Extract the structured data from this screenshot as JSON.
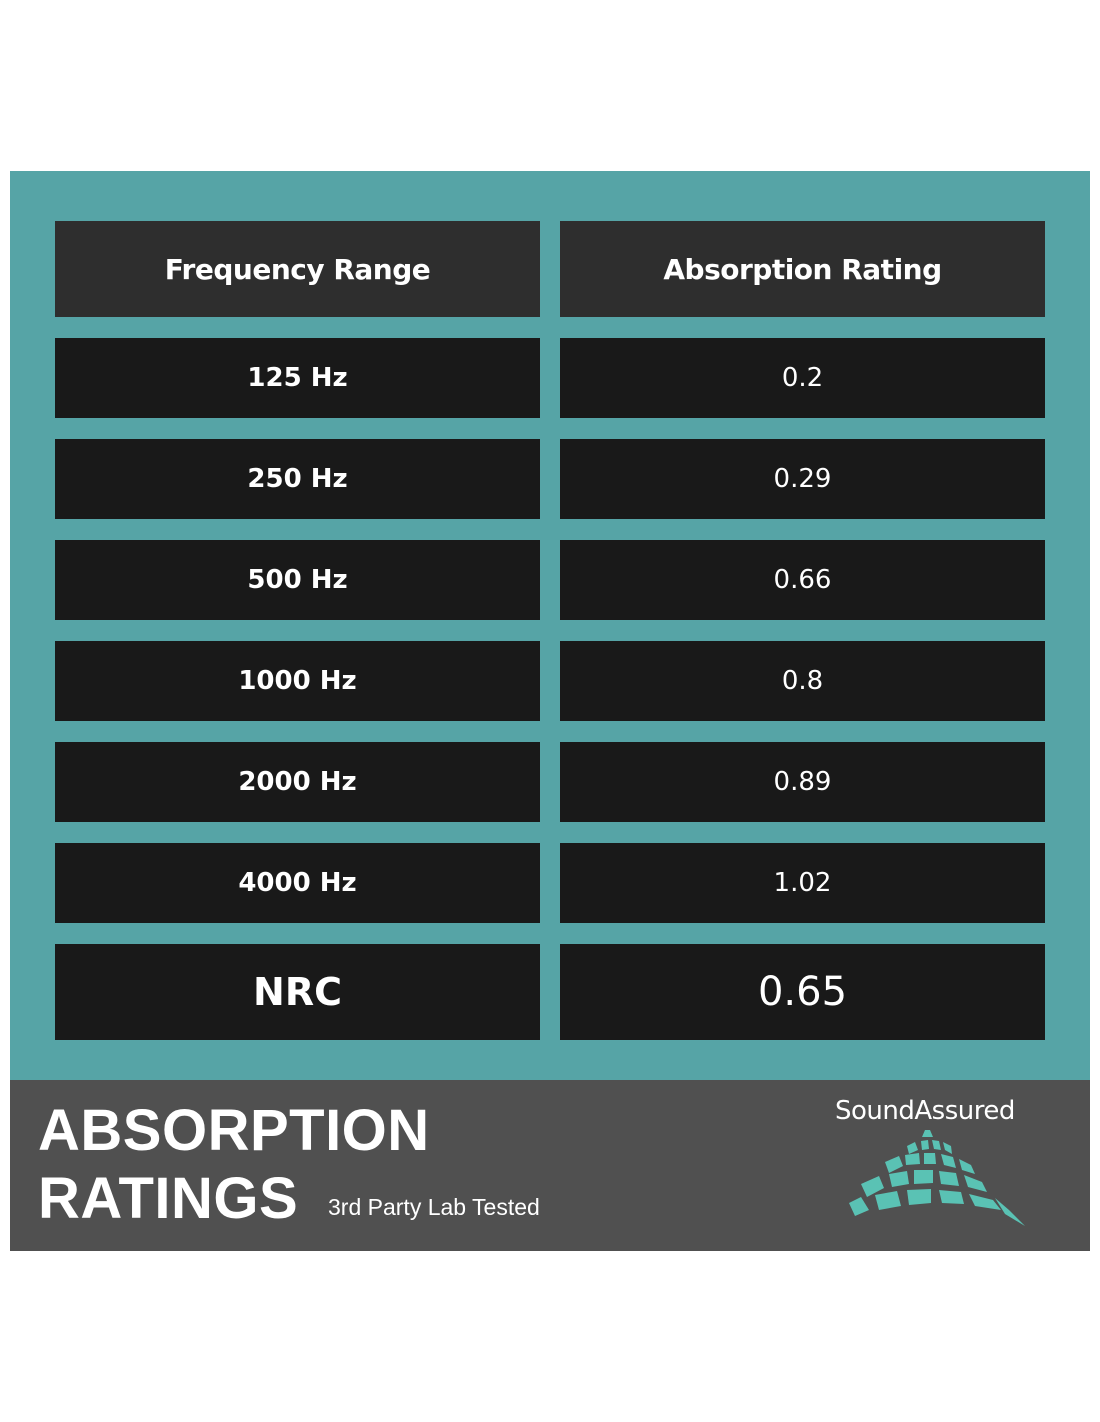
{
  "table": {
    "headers": {
      "frequency": "Frequency Range",
      "absorption": "Absorption Rating"
    },
    "rows": [
      {
        "frequency": "125 Hz",
        "rating": "0.2"
      },
      {
        "frequency": "250 Hz",
        "rating": "0.29"
      },
      {
        "frequency": "500 Hz",
        "rating": "0.66"
      },
      {
        "frequency": "1000 Hz",
        "rating": "0.8"
      },
      {
        "frequency": "2000 Hz",
        "rating": "0.89"
      },
      {
        "frequency": "4000 Hz",
        "rating": "1.02"
      }
    ],
    "summary": {
      "label": "NRC",
      "value": "0.65"
    }
  },
  "footer": {
    "title_line1": "ABSORPTION",
    "title_line2": "RATINGS",
    "subtitle": "3rd Party Lab Tested",
    "brand": "SoundAssured"
  },
  "colors": {
    "panel_teal": "#56a4a6",
    "header_cell": "#2e2e2e",
    "row_cell": "#191919",
    "footer_gray": "#505050",
    "logo_accent": "#5ac2b4"
  }
}
